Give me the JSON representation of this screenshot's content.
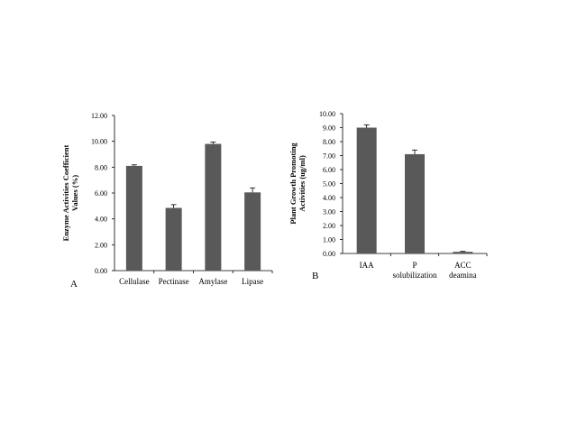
{
  "chart_data": [
    {
      "type": "bar",
      "panel_label": "A",
      "categories": [
        "Cellulase",
        "Pectinase",
        "Amylase",
        "Lipase"
      ],
      "values": [
        8.1,
        4.85,
        9.8,
        6.05
      ],
      "errors": [
        0.08,
        0.25,
        0.15,
        0.35
      ],
      "ylabel_lines": [
        "Enzyme Activities Coefficient",
        "Values (%)"
      ],
      "ylim": [
        0,
        12
      ],
      "yticks": [
        "0.00",
        "2.00",
        "4.00",
        "6.00",
        "8.00",
        "10.00",
        "12.00"
      ],
      "bar_color": "#595959",
      "grid": false
    },
    {
      "type": "bar",
      "panel_label": "B",
      "categories": [
        [
          "IAA"
        ],
        [
          "P",
          "solubilization"
        ],
        [
          "ACC",
          "deamina"
        ]
      ],
      "values": [
        9.0,
        7.1,
        0.12
      ],
      "errors": [
        0.2,
        0.3,
        0.03
      ],
      "ylabel_lines": [
        "Plant Growth Promoting",
        "Activities (ug/ml)"
      ],
      "ylim": [
        0,
        10
      ],
      "yticks": [
        "0.00",
        "1.00",
        "2.00",
        "3.00",
        "4.00",
        "5.00",
        "6.00",
        "7.00",
        "8.00",
        "9.00",
        "10.00"
      ],
      "bar_color": "#595959",
      "grid": false
    }
  ]
}
